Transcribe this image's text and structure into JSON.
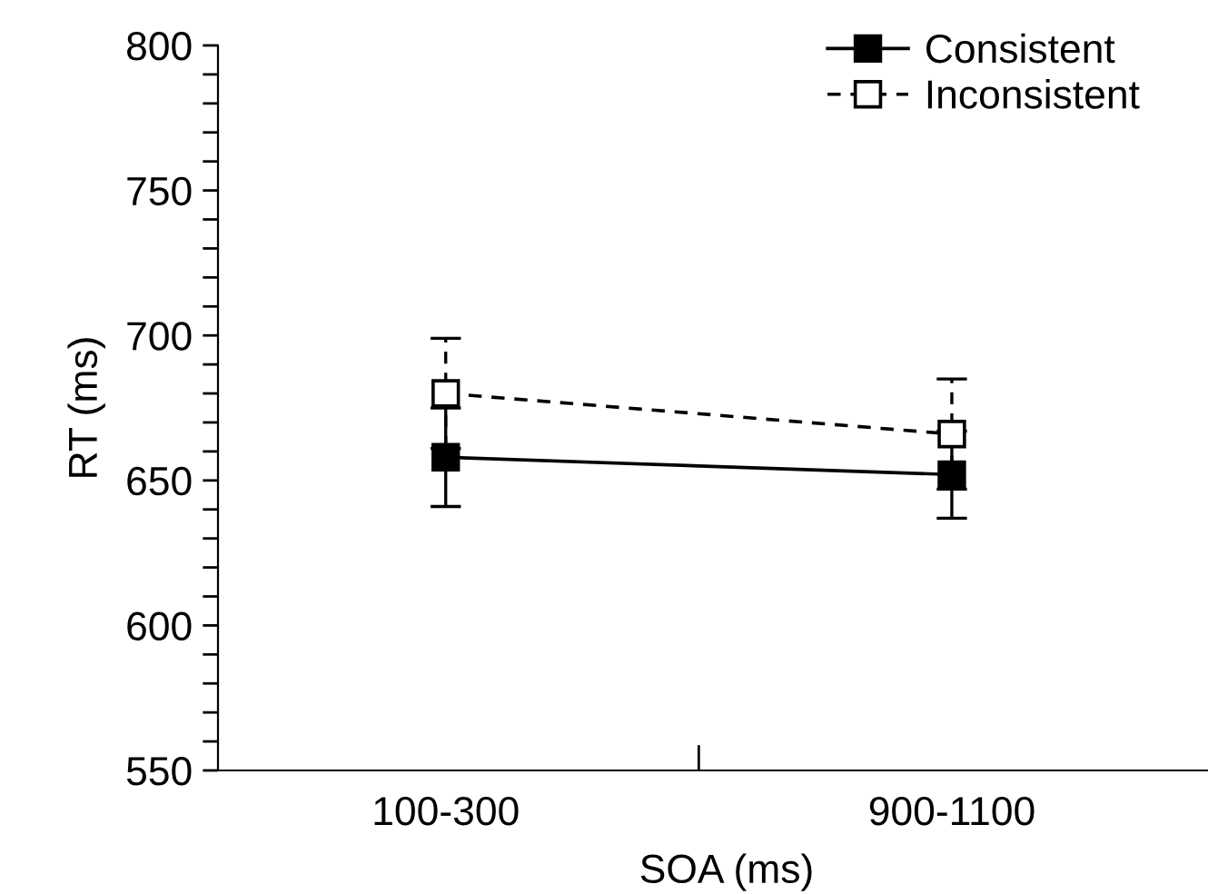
{
  "chart_data": {
    "type": "line",
    "xlabel": "SOA (ms)",
    "ylabel": "RT (ms)",
    "categories": [
      "100-300",
      "900-1100"
    ],
    "series": [
      {
        "name": "Consistent",
        "color": "#000000",
        "values": [
          658,
          652
        ],
        "errors": [
          17,
          15
        ],
        "marker": "square",
        "line_style": "solid"
      },
      {
        "name": "Inconsistent",
        "color": "#000000",
        "values": [
          680,
          666
        ],
        "errors": [
          19,
          19
        ],
        "marker": "square",
        "line_style": "dashed"
      }
    ],
    "ylim": [
      550,
      800
    ],
    "yticks": [
      550,
      {
        "value": 560,
        "label": null
      },
      {
        "value": 570,
        "label": null
      },
      {
        "value": 580,
        "label": null
      },
      {
        "value": 590,
        "label": null
      },
      600,
      {
        "value": 610,
        "label": null
      },
      {
        "value": 620,
        "label": null
      },
      {
        "value": 630,
        "label": null
      },
      {
        "value": 640,
        "label": null
      },
      650,
      {
        "value": 660,
        "label": null
      },
      {
        "value": 670,
        "label": null
      },
      {
        "value": 680,
        "label": null
      },
      {
        "value": 690,
        "label": null
      },
      700,
      {
        "value": 710,
        "label": null
      },
      {
        "value": 720,
        "label": null
      },
      {
        "value": 730,
        "label": null
      },
      {
        "value": 740,
        "label": null
      },
      750,
      {
        "value": 760,
        "label": null
      },
      {
        "value": 770,
        "label": null
      },
      {
        "value": 780,
        "label": null
      },
      {
        "value": 790,
        "label": null
      },
      800
    ],
    "grid": false,
    "legend": "top right"
  }
}
